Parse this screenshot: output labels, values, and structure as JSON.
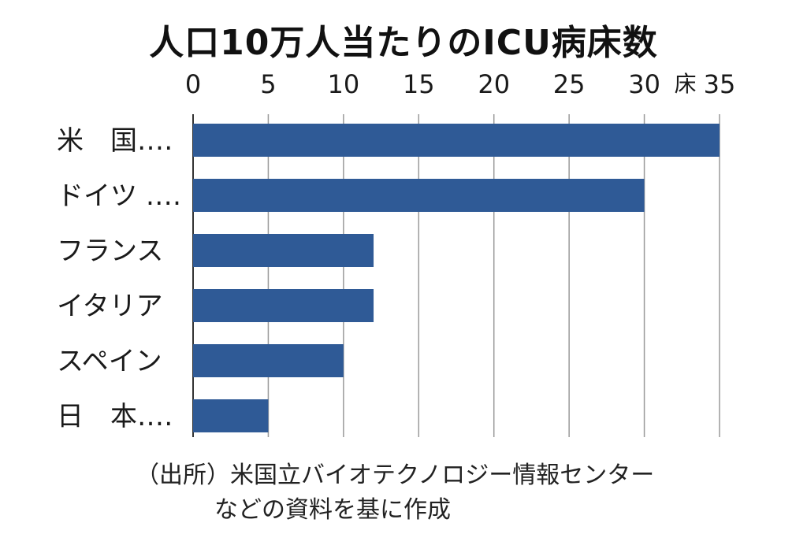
{
  "chart_data": {
    "type": "bar",
    "orientation": "horizontal",
    "title": "人口10万人当たりのICU病床数",
    "unit": "床",
    "categories": [
      "米　国‥‥",
      "ドイツ ‥‥",
      "フランス",
      "イタリア",
      "スペイン",
      "日　本‥‥"
    ],
    "values": [
      35,
      30,
      12,
      12,
      10,
      5
    ],
    "xlim": [
      0,
      35
    ],
    "xticks": [
      0,
      5,
      10,
      15,
      20,
      25,
      30,
      35
    ],
    "grid": true,
    "bar_color": "#2f5a96",
    "source_line1": "（出所）米国立バイオテクノロジー情報センター",
    "source_line2": "などの資料を基に作成"
  }
}
